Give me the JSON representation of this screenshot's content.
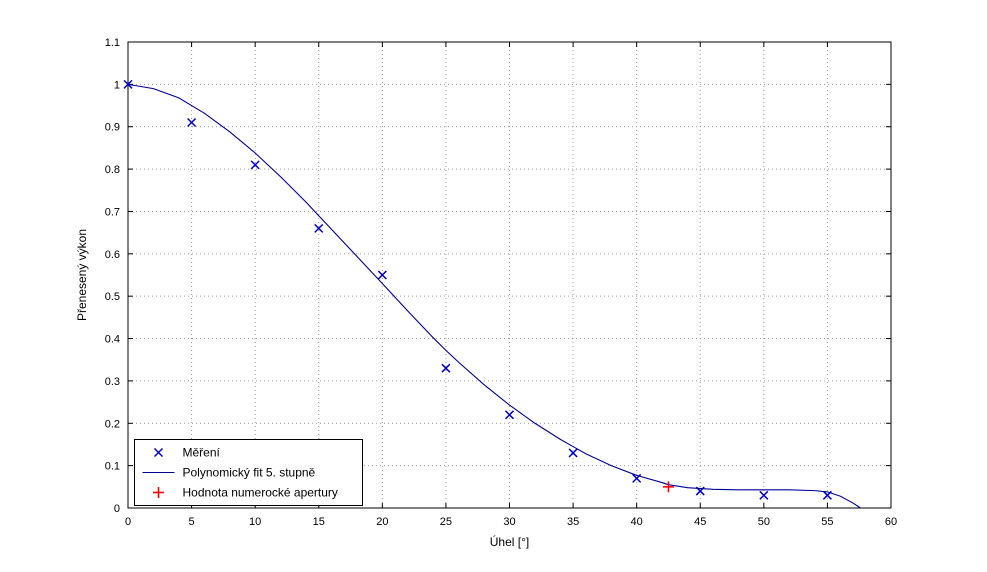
{
  "chart_data": {
    "type": "line+scatter",
    "title": "",
    "xlabel": "Úhel [°]",
    "ylabel": "Přenesený výkon",
    "xlim": [
      0,
      60
    ],
    "ylim": [
      0,
      1.1
    ],
    "xticks": [
      0,
      5,
      10,
      15,
      20,
      25,
      30,
      35,
      40,
      45,
      50,
      55,
      60
    ],
    "yticks": [
      0,
      0.1,
      0.2,
      0.3,
      0.4,
      0.5,
      0.6,
      0.7,
      0.8,
      0.9,
      1,
      1.1
    ],
    "grid": true,
    "grid_color": "#9c9c9c",
    "axis_color": "#000000",
    "background": "#ffffff",
    "legend_position": "bottom-left",
    "series": [
      {
        "name": "Měření",
        "type": "scatter",
        "marker": "x",
        "color": "#0000cc",
        "x": [
          0,
          5,
          10,
          15,
          20,
          25,
          30,
          35,
          40,
          45,
          50,
          55
        ],
        "y": [
          1.0,
          0.91,
          0.81,
          0.66,
          0.55,
          0.33,
          0.22,
          0.13,
          0.07,
          0.04,
          0.03,
          0.03
        ]
      },
      {
        "name": "Polynomický fit 5. stupně",
        "type": "line",
        "marker": "none",
        "color": "#000099",
        "x": [
          0,
          2,
          4,
          5,
          6,
          8,
          10,
          12,
          14,
          15,
          16,
          18,
          20,
          22,
          24,
          25,
          26,
          28,
          30,
          32,
          34,
          35,
          36,
          38,
          40,
          42,
          42.5,
          44,
          46,
          48,
          50,
          52,
          54,
          55,
          56,
          57,
          57.6
        ],
        "y": [
          1.0,
          0.99,
          0.968,
          0.95,
          0.932,
          0.888,
          0.838,
          0.782,
          0.722,
          0.69,
          0.658,
          0.594,
          0.53,
          0.465,
          0.402,
          0.372,
          0.344,
          0.291,
          0.243,
          0.2,
          0.162,
          0.145,
          0.128,
          0.1,
          0.077,
          0.06,
          0.055,
          0.048,
          0.044,
          0.043,
          0.043,
          0.043,
          0.041,
          0.038,
          0.028,
          0.012,
          0.0
        ]
      },
      {
        "name": "Hodnota numerocké apertury",
        "type": "scatter",
        "marker": "+",
        "color": "#ff0000",
        "x": [
          42.5
        ],
        "y": [
          0.05
        ]
      }
    ]
  }
}
